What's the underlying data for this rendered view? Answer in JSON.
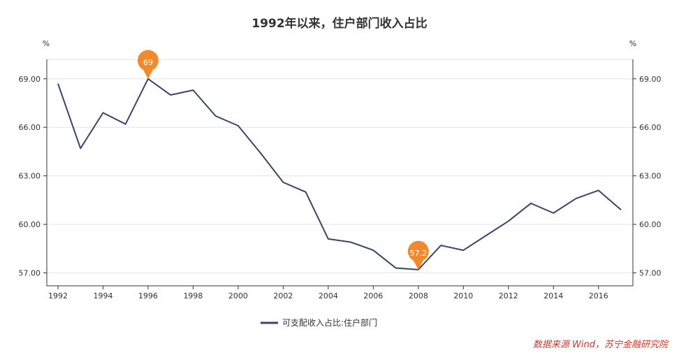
{
  "chart_data": {
    "type": "line",
    "title": "1992年以来，住户部门收入占比",
    "y_unit_left": "%",
    "y_unit_right": "%",
    "ylim": [
      56.2,
      70.2
    ],
    "y_ticks": [
      "57.00",
      "60.00",
      "63.00",
      "66.00",
      "69.00"
    ],
    "x_ticks": [
      "1992",
      "1994",
      "1996",
      "1998",
      "2000",
      "2002",
      "2004",
      "2006",
      "2008",
      "2010",
      "2012",
      "2014",
      "2016"
    ],
    "grid": true,
    "legend_position": "bottom-center",
    "x": [
      1992,
      1993,
      1994,
      1995,
      1996,
      1997,
      1998,
      1999,
      2000,
      2001,
      2002,
      2003,
      2004,
      2005,
      2006,
      2007,
      2008,
      2009,
      2010,
      2011,
      2012,
      2013,
      2014,
      2015,
      2016,
      2017
    ],
    "series": [
      {
        "name": "可支配收入占比:住户部门",
        "color": "#3a4566",
        "values": [
          68.7,
          64.7,
          66.9,
          66.2,
          69.0,
          68.0,
          68.3,
          66.7,
          66.1,
          64.4,
          62.6,
          62.0,
          59.1,
          58.9,
          58.4,
          57.3,
          57.2,
          58.7,
          58.4,
          59.3,
          60.2,
          61.3,
          60.7,
          61.6,
          62.1,
          60.9
        ]
      }
    ],
    "annotations": [
      {
        "x": 1996,
        "y": 69.0,
        "label": "69",
        "type": "max"
      },
      {
        "x": 2008,
        "y": 57.2,
        "label": "57.2",
        "type": "min"
      }
    ],
    "marker_color": "#f08a2c"
  },
  "source_text": "数据来源 Wind，苏宁金融研究院"
}
